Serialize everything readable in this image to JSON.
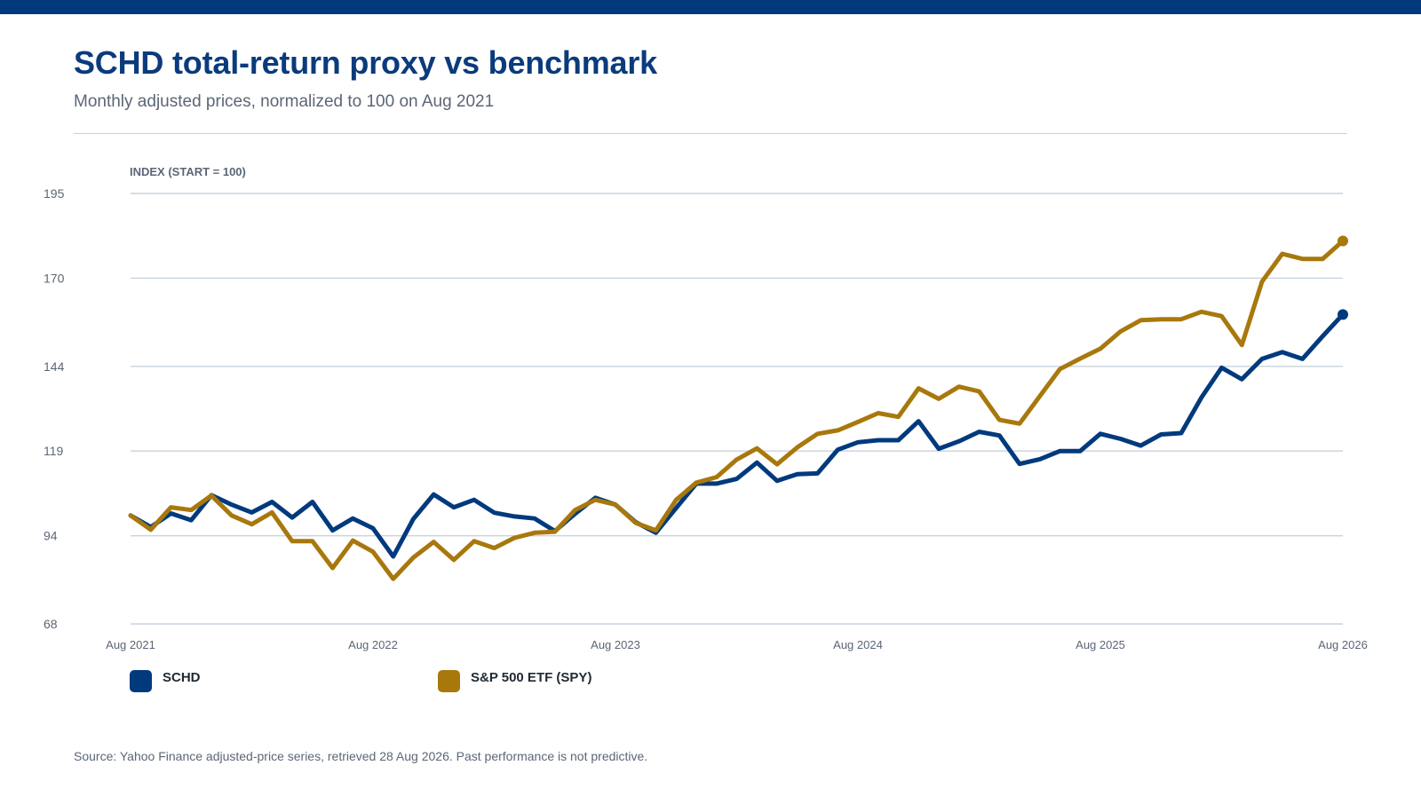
{
  "header": {
    "title": "SCHD total-return proxy vs benchmark",
    "subtitle": "Monthly adjusted prices, normalized to 100 on Aug 2021"
  },
  "footer": {
    "source": "Source: Yahoo Finance adjusted-price series, retrieved 28 Aug 2026. Past performance is not predictive."
  },
  "colors": {
    "band": "#003a7d",
    "title": "#0a3b7c",
    "grid": "#c9d3de",
    "text_muted": "#5b6676"
  },
  "chart_data": {
    "type": "line",
    "title": "SCHD total-return proxy vs benchmark",
    "subtitle": "Monthly adjusted prices, normalized to 100 on Aug 2021",
    "ylabel": "INDEX (START = 100)",
    "xlabel": "",
    "ylim": [
      68,
      195
    ],
    "yticks": [
      68,
      94,
      119,
      144,
      170,
      195
    ],
    "xticks": [
      "Aug 2021",
      "Aug 2022",
      "Aug 2023",
      "Aug 2024",
      "Aug 2025",
      "Aug 2026"
    ],
    "grid": true,
    "legend_position": "bottom-left",
    "end_markers": true,
    "x": [
      "Aug 2021",
      "Sep 2021",
      "Oct 2021",
      "Nov 2021",
      "Dec 2021",
      "Jan 2022",
      "Feb 2022",
      "Mar 2022",
      "Apr 2022",
      "May 2022",
      "Jun 2022",
      "Jul 2022",
      "Aug 2022",
      "Sep 2022",
      "Oct 2022",
      "Nov 2022",
      "Dec 2022",
      "Jan 2023",
      "Feb 2023",
      "Mar 2023",
      "Apr 2023",
      "May 2023",
      "Jun 2023",
      "Jul 2023",
      "Aug 2023",
      "Sep 2023",
      "Oct 2023",
      "Nov 2023",
      "Dec 2023",
      "Jan 2024",
      "Feb 2024",
      "Mar 2024",
      "Apr 2024",
      "May 2024",
      "Jun 2024",
      "Jul 2024",
      "Aug 2024",
      "Sep 2024",
      "Oct 2024",
      "Nov 2024",
      "Dec 2024",
      "Jan 2025",
      "Feb 2025",
      "Mar 2025",
      "Apr 2025",
      "May 2025",
      "Jun 2025",
      "Jul 2025",
      "Aug 2025",
      "Sep 2025",
      "Oct 2025",
      "Nov 2025",
      "Dec 2025",
      "Jan 2026",
      "Feb 2026",
      "Mar 2026",
      "Apr 2026",
      "May 2026",
      "Jun 2026",
      "Jul 2026",
      "Aug 2026"
    ],
    "series": [
      {
        "name": "SCHD",
        "color": "#003a7d",
        "values": [
          100,
          96.6,
          100.6,
          98.6,
          106,
          103.2,
          100.9,
          104,
          99.4,
          104,
          95.6,
          99.1,
          96.2,
          87.9,
          99,
          106.2,
          102.4,
          104.6,
          100.8,
          99.7,
          99.1,
          95.4,
          100.5,
          105.2,
          103.2,
          98,
          94.9,
          102.2,
          109.4,
          109.4,
          110.8,
          115.6,
          110.2,
          112.2,
          112.4,
          119.4,
          121.6,
          122.2,
          122.2,
          127.8,
          119.7,
          121.9,
          124.7,
          123.6,
          115.2,
          116.6,
          119,
          119,
          124.1,
          122.6,
          120.6,
          123.9,
          124.3,
          134.8,
          143.6,
          140.2,
          146.2,
          148.2,
          146.2,
          152.9,
          159.3
        ]
      },
      {
        "name": "S&P 500 ETF (SPY)",
        "color": "#a8780d",
        "values": [
          100,
          95.8,
          102.4,
          101.6,
          105.9,
          100,
          97.4,
          100.9,
          92.4,
          92.4,
          84.5,
          92.6,
          89.3,
          81.3,
          87.6,
          92.2,
          86.9,
          92.4,
          90.4,
          93.4,
          94.9,
          95.2,
          101.6,
          104.6,
          103.2,
          97.8,
          95.6,
          104.6,
          109.7,
          111.3,
          116.5,
          119.8,
          115.1,
          120.1,
          124.1,
          125.1,
          127.6,
          130.2,
          129.1,
          137.5,
          134.4,
          138,
          136.6,
          128.2,
          127.1,
          135.2,
          143.2,
          146.3,
          149.2,
          154.3,
          157.6,
          157.9,
          157.9,
          160.1,
          158.8,
          150.3,
          169,
          177.2,
          175.7,
          175.7,
          181
        ]
      }
    ]
  }
}
